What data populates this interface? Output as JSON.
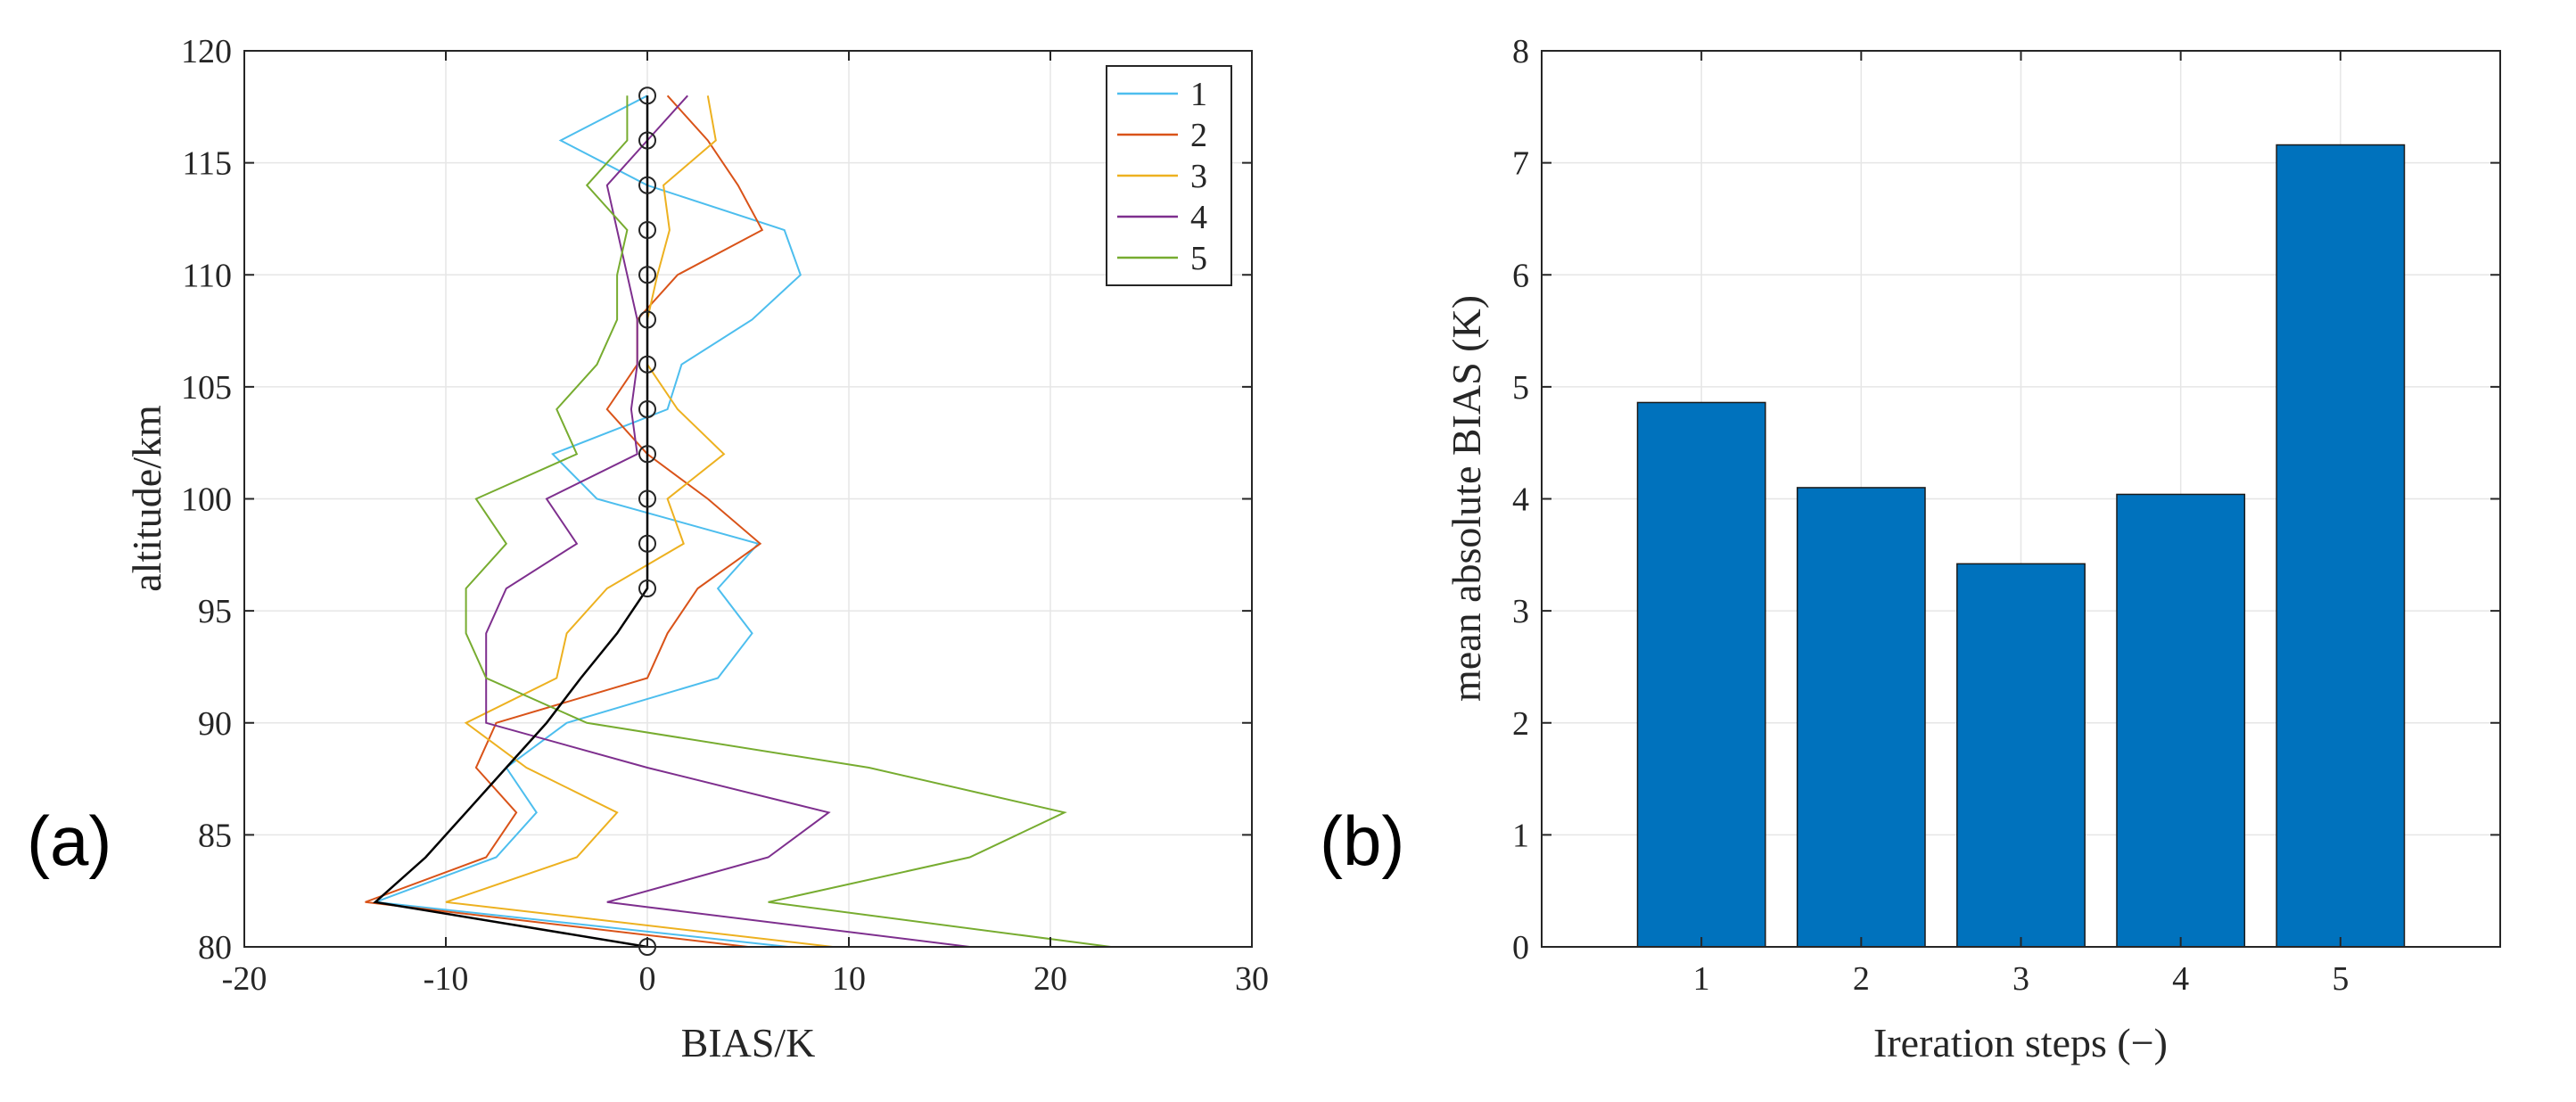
{
  "chart_data": [
    {
      "type": "line",
      "panel_label": "(a)",
      "xlabel": "BIAS/K",
      "ylabel": "altitude/km",
      "xlim": [
        -20,
        30
      ],
      "ylim": [
        80,
        120
      ],
      "xticks": [
        -20,
        -10,
        0,
        10,
        20,
        30
      ],
      "xtick_labels": [
        "-20",
        "-10",
        "0",
        "10",
        "20",
        "30"
      ],
      "yticks": [
        80,
        85,
        90,
        95,
        100,
        105,
        110,
        115,
        120
      ],
      "ytick_labels": [
        "80",
        "85",
        "90",
        "95",
        "100",
        "105",
        "110",
        "115",
        "120"
      ],
      "grid": true,
      "legend_position": "top-right",
      "y": [
        80,
        82,
        84,
        86,
        88,
        90,
        92,
        94,
        96,
        98,
        100,
        102,
        104,
        106,
        108,
        110,
        112,
        114,
        116,
        118
      ],
      "series": [
        {
          "name": "1",
          "color": "#4DBEEE",
          "x": [
            7,
            -13.5,
            -7.5,
            -5.5,
            -7,
            -4,
            3.5,
            5.2,
            3.5,
            5.5,
            -2.5,
            -4.7,
            1,
            1.7,
            5.2,
            7.6,
            6.8,
            0,
            -4.3,
            0
          ]
        },
        {
          "name": "2",
          "color": "#D95319",
          "x": [
            5,
            -14,
            -8,
            -6.5,
            -8.5,
            -7.5,
            0,
            1,
            2.5,
            5.6,
            3,
            0,
            -2,
            -0.5,
            -0.5,
            1.5,
            5.7,
            4.5,
            3,
            1
          ]
        },
        {
          "name": "3",
          "color": "#EDB120",
          "x": [
            9.2,
            -10,
            -3.5,
            -1.5,
            -6,
            -9,
            -4.5,
            -4,
            -2,
            1.8,
            1,
            3.8,
            1.5,
            0,
            0,
            0.5,
            1.1,
            0.8,
            3.4,
            3
          ]
        },
        {
          "name": "4",
          "color": "#7E2F8E",
          "x": [
            16,
            -2,
            6,
            9,
            0,
            -8,
            -8,
            -8,
            -7,
            -3.5,
            -5,
            -0.5,
            -0.8,
            -0.5,
            -0.5,
            -1,
            -1.5,
            -2,
            0,
            2
          ]
        },
        {
          "name": "5",
          "color": "#77AC30",
          "x": [
            23,
            6,
            16,
            20.7,
            11,
            -3,
            -8,
            -9,
            -9,
            -7,
            -8.5,
            -3.5,
            -4.5,
            -2.5,
            -1.5,
            -1.5,
            -1,
            -3,
            -1,
            -1
          ]
        },
        {
          "name": "",
          "color": "#000000",
          "markers": true,
          "x": [
            0,
            -13.5,
            -11,
            -9,
            -7,
            -5,
            -3.3,
            -1.5,
            0,
            0,
            0,
            0,
            0,
            0,
            0,
            0,
            0,
            0,
            0,
            0
          ]
        }
      ]
    },
    {
      "type": "bar",
      "panel_label": "(b)",
      "xlabel": "Ireration steps (−)",
      "ylabel": "mean absolute BIAS (K)",
      "categories": [
        "1",
        "2",
        "3",
        "4",
        "5"
      ],
      "values": [
        4.86,
        4.1,
        3.42,
        4.04,
        7.16
      ],
      "bar_color": "#0072BD",
      "xlim": [
        0,
        6
      ],
      "ylim": [
        0,
        8
      ],
      "yticks": [
        0,
        1,
        2,
        3,
        4,
        5,
        6,
        7,
        8
      ],
      "ytick_labels": [
        "0",
        "1",
        "2",
        "3",
        "4",
        "5",
        "6",
        "7",
        "8"
      ],
      "grid": true
    }
  ]
}
